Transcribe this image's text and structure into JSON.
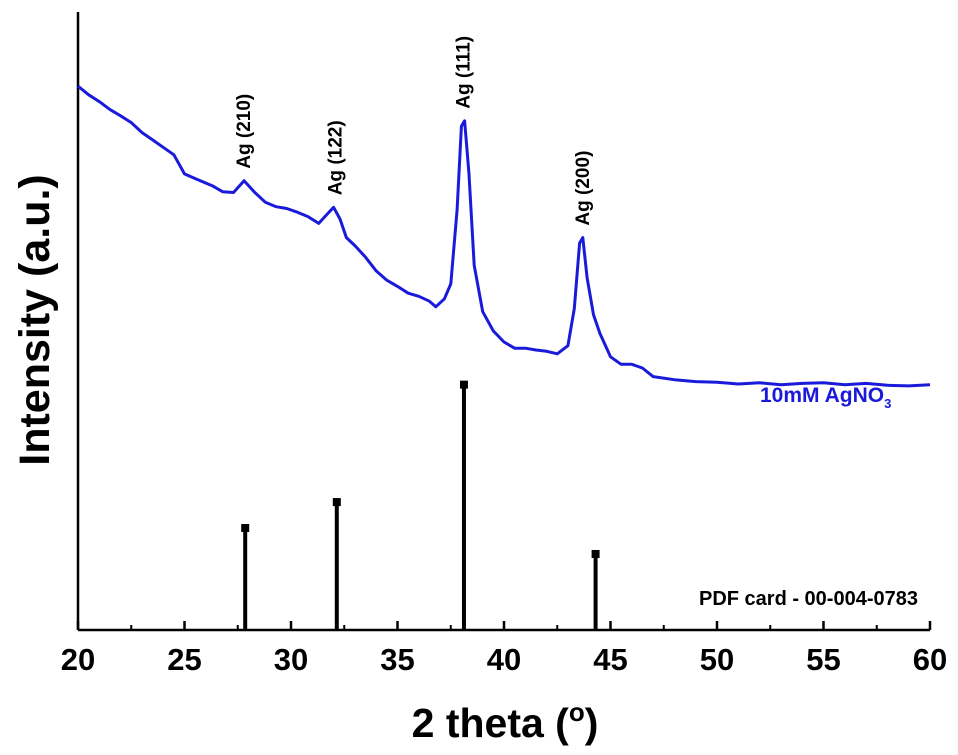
{
  "chart_data": {
    "type": "line",
    "xlabel": "2 theta (",
    "xlabel_unit": "o",
    "xlabel_close": ")",
    "ylabel": "Intensity (a.u.)",
    "xlim": [
      20,
      60
    ],
    "ylim": [
      0,
      100
    ],
    "x_ticks": [
      20,
      25,
      30,
      35,
      40,
      45,
      50,
      55,
      60
    ],
    "x_tick_labels": [
      "20",
      "25",
      "30",
      "35",
      "40",
      "45",
      "50",
      "55",
      "60"
    ],
    "y_ticks_shown": false,
    "series": [
      {
        "name": "10mM AgNO",
        "name_subscript": "3",
        "color": "#1a1adb",
        "points": [
          [
            20.0,
            88.0
          ],
          [
            20.5,
            86.6
          ],
          [
            21.0,
            85.5
          ],
          [
            21.5,
            84.2
          ],
          [
            22.0,
            83.2
          ],
          [
            22.5,
            82.1
          ],
          [
            23.0,
            80.5
          ],
          [
            23.5,
            79.3
          ],
          [
            24.0,
            78.1
          ],
          [
            24.5,
            76.9
          ],
          [
            25.0,
            73.8
          ],
          [
            25.4,
            73.2
          ],
          [
            25.8,
            72.6
          ],
          [
            26.3,
            71.9
          ],
          [
            26.8,
            70.9
          ],
          [
            27.3,
            70.8
          ],
          [
            27.8,
            72.7
          ],
          [
            28.3,
            70.8
          ],
          [
            28.8,
            69.2
          ],
          [
            29.3,
            68.5
          ],
          [
            29.8,
            68.2
          ],
          [
            30.3,
            67.6
          ],
          [
            30.8,
            66.9
          ],
          [
            31.3,
            65.8
          ],
          [
            31.7,
            67.3
          ],
          [
            32.0,
            68.4
          ],
          [
            32.3,
            66.5
          ],
          [
            32.6,
            63.5
          ],
          [
            33.0,
            62.2
          ],
          [
            33.5,
            60.3
          ],
          [
            34.0,
            58.1
          ],
          [
            34.5,
            56.6
          ],
          [
            35.0,
            55.6
          ],
          [
            35.5,
            54.5
          ],
          [
            36.0,
            54.0
          ],
          [
            36.5,
            53.2
          ],
          [
            36.8,
            52.3
          ],
          [
            37.2,
            53.6
          ],
          [
            37.5,
            56.0
          ],
          [
            37.8,
            68.0
          ],
          [
            38.0,
            81.5
          ],
          [
            38.15,
            82.4
          ],
          [
            38.35,
            74.0
          ],
          [
            38.6,
            59.0
          ],
          [
            39.0,
            51.5
          ],
          [
            39.5,
            48.4
          ],
          [
            40.0,
            46.6
          ],
          [
            40.5,
            45.6
          ],
          [
            41.0,
            45.6
          ],
          [
            41.5,
            45.3
          ],
          [
            42.0,
            45.1
          ],
          [
            42.5,
            44.7
          ],
          [
            43.0,
            46.0
          ],
          [
            43.3,
            52.0
          ],
          [
            43.55,
            62.6
          ],
          [
            43.7,
            63.5
          ],
          [
            43.9,
            57.0
          ],
          [
            44.2,
            51.0
          ],
          [
            44.5,
            48.0
          ],
          [
            45.0,
            44.2
          ],
          [
            45.5,
            43.0
          ],
          [
            46.0,
            43.0
          ],
          [
            46.5,
            42.4
          ],
          [
            47.0,
            41.0
          ],
          [
            48.0,
            40.5
          ],
          [
            49.0,
            40.2
          ],
          [
            50.0,
            40.1
          ],
          [
            51.0,
            39.8
          ],
          [
            52.0,
            40.0
          ],
          [
            53.0,
            39.7
          ],
          [
            54.0,
            39.9
          ],
          [
            55.0,
            40.0
          ],
          [
            56.0,
            39.7
          ],
          [
            57.0,
            39.9
          ],
          [
            58.0,
            39.6
          ],
          [
            59.0,
            39.5
          ],
          [
            60.0,
            39.7
          ]
        ]
      }
    ],
    "peak_annotations": [
      {
        "text": "Ag (210)",
        "x": 27.8
      },
      {
        "text": "Ag (122)",
        "x": 32.1
      },
      {
        "text": "Ag (111)",
        "x": 38.1
      },
      {
        "text": "Ag (200)",
        "x": 43.7
      }
    ],
    "reference": {
      "label": "PDF card - 00-004-0783",
      "bars": [
        {
          "x": 27.85,
          "height": 16.5
        },
        {
          "x": 32.15,
          "height": 20.7
        },
        {
          "x": 38.12,
          "height": 39.7
        },
        {
          "x": 44.3,
          "height": 12.3
        }
      ]
    }
  }
}
